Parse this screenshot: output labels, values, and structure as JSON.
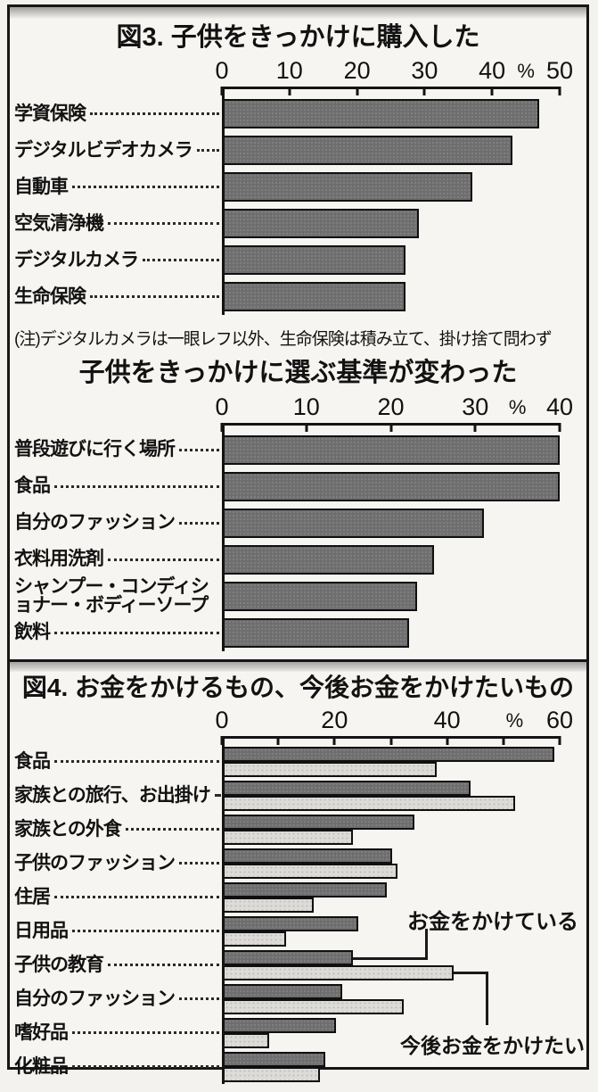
{
  "colors": {
    "dark_bar": "#6e6e6e",
    "light_bar": "#dddbd7",
    "bar_outline": "#101010",
    "frame_border": "#161616"
  },
  "chart_data": [
    {
      "id": "fig3",
      "type": "bar",
      "orientation": "horizontal",
      "title": "図3. 子供をきっかけに購入した",
      "unit": "%",
      "xlim": [
        0,
        50
      ],
      "tick_step": 10,
      "tick_labels": [
        "0",
        "10",
        "20",
        "30",
        "40",
        "50"
      ],
      "percent_x": 45,
      "grid": false,
      "categories": [
        "学資保険",
        "デジタルビデオカメラ",
        "自動車",
        "空気清浄機",
        "デジタルカメラ",
        "生命保険"
      ],
      "values": [
        47,
        43,
        37,
        29,
        27,
        27
      ],
      "note": "(注)デジタルカメラは一眼レフ以外、生命保険は積み立て、掛け捨て問わず"
    },
    {
      "id": "fig3b",
      "type": "bar",
      "orientation": "horizontal",
      "title": "子供をきっかけに選ぶ基準が変わった",
      "unit": "%",
      "xlim": [
        0,
        40
      ],
      "tick_step": 10,
      "tick_labels": [
        "0",
        "10",
        "20",
        "30",
        "40"
      ],
      "percent_x": 35,
      "grid": false,
      "categories": [
        "普段遊びに行く場所",
        "食品",
        "自分のファッション",
        "衣料用洗剤",
        "シャンプー・コンディショナー・ボディーソープ",
        "飲料"
      ],
      "values": [
        40,
        40,
        31,
        25,
        23,
        22
      ]
    },
    {
      "id": "fig4",
      "type": "bar",
      "orientation": "horizontal",
      "title": "図4. お金をかけるもの、今後お金をかけたいもの",
      "unit": "%",
      "xlim": [
        0,
        60
      ],
      "tick_step": 10,
      "tick_labels": [
        "0",
        "20",
        "40",
        "60"
      ],
      "label_step": 20,
      "percent_x": 52,
      "grid": false,
      "categories": [
        "食品",
        "家族との旅行、お出掛け",
        "家族との外食",
        "子供のファッション",
        "住居",
        "日用品",
        "子供の教育",
        "自分のファッション",
        "嗜好品",
        "化粧品"
      ],
      "series": [
        {
          "name": "お金をかけている",
          "color": "#6e6e6e",
          "values": [
            59,
            44,
            34,
            30,
            29,
            24,
            23,
            21,
            20,
            18
          ]
        },
        {
          "name": "今後お金をかけたい",
          "color": "#dddbd7",
          "values": [
            38,
            52,
            23,
            31,
            16,
            11,
            41,
            32,
            8,
            17
          ]
        }
      ],
      "annotations": [
        {
          "text": "お金をかけている",
          "series": 0,
          "category": "子供の教育"
        },
        {
          "text": "今後お金をかけたい",
          "series": 1,
          "category": "子供の教育"
        }
      ],
      "legend_position": "inside-right"
    }
  ]
}
